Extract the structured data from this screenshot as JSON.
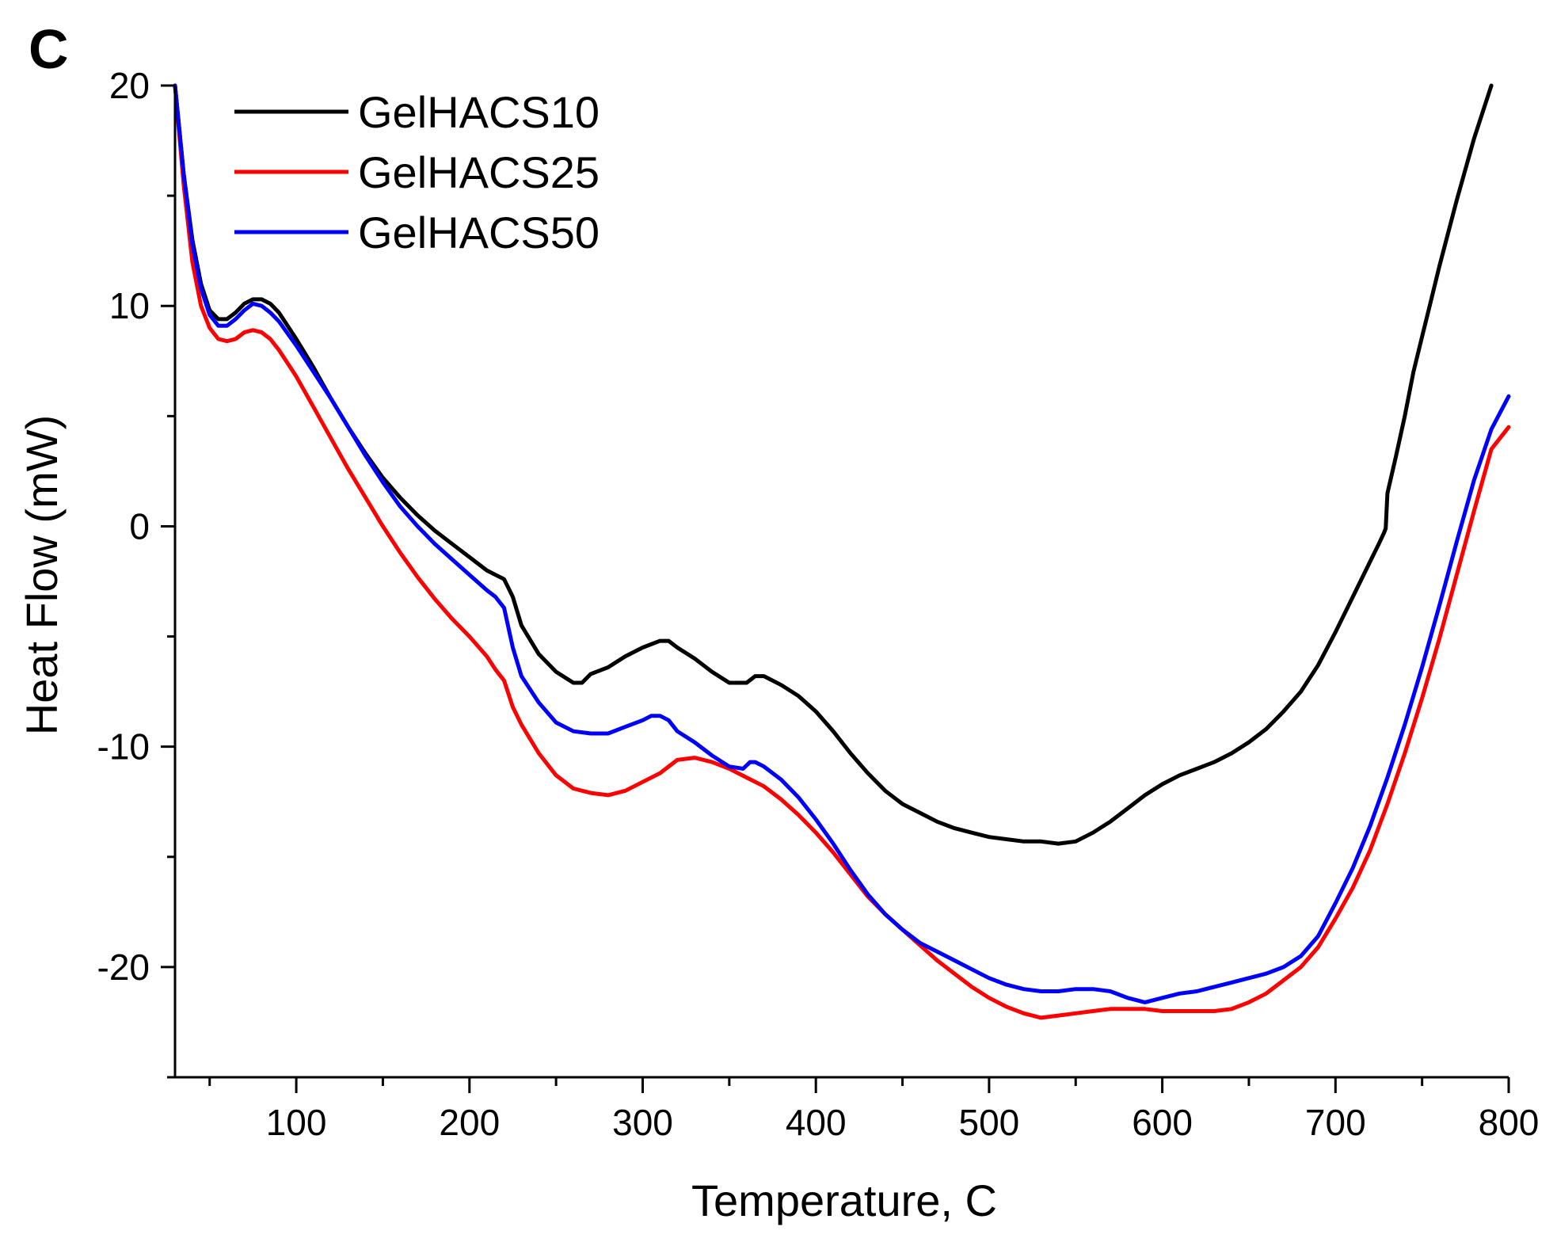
{
  "chart_data": {
    "type": "line",
    "panel_label": "C",
    "title": "",
    "xlabel": "Temperature, C",
    "ylabel": "Heat Flow (mW)",
    "xlim": [
      30,
      800
    ],
    "ylim": [
      -25,
      20
    ],
    "x_ticks": [
      100,
      200,
      300,
      400,
      500,
      600,
      700,
      800
    ],
    "x_minor_ticks": [
      50,
      150,
      250,
      350,
      450,
      550,
      650,
      750
    ],
    "y_ticks": [
      20,
      10,
      0,
      -10,
      -20
    ],
    "y_tick_labels": [
      "20",
      "10",
      "0",
      "-10",
      "-20"
    ],
    "grid": false,
    "legend_position": "top-left",
    "series": [
      {
        "name": "GelHACS10",
        "color": "#000000",
        "points": [
          [
            30,
            20
          ],
          [
            35,
            16
          ],
          [
            40,
            13
          ],
          [
            45,
            11
          ],
          [
            50,
            9.8
          ],
          [
            55,
            9.4
          ],
          [
            60,
            9.4
          ],
          [
            65,
            9.7
          ],
          [
            70,
            10.1
          ],
          [
            75,
            10.3
          ],
          [
            80,
            10.3
          ],
          [
            85,
            10.1
          ],
          [
            90,
            9.7
          ],
          [
            100,
            8.5
          ],
          [
            110,
            7.2
          ],
          [
            120,
            5.8
          ],
          [
            130,
            4.5
          ],
          [
            140,
            3.3
          ],
          [
            150,
            2.2
          ],
          [
            160,
            1.3
          ],
          [
            170,
            0.5
          ],
          [
            180,
            -0.2
          ],
          [
            190,
            -0.8
          ],
          [
            200,
            -1.4
          ],
          [
            210,
            -2.0
          ],
          [
            215,
            -2.2
          ],
          [
            220,
            -2.4
          ],
          [
            225,
            -3.2
          ],
          [
            230,
            -4.5
          ],
          [
            240,
            -5.8
          ],
          [
            250,
            -6.6
          ],
          [
            260,
            -7.1
          ],
          [
            265,
            -7.1
          ],
          [
            270,
            -6.7
          ],
          [
            280,
            -6.4
          ],
          [
            290,
            -5.9
          ],
          [
            300,
            -5.5
          ],
          [
            310,
            -5.2
          ],
          [
            315,
            -5.2
          ],
          [
            320,
            -5.5
          ],
          [
            330,
            -6.0
          ],
          [
            340,
            -6.6
          ],
          [
            350,
            -7.1
          ],
          [
            360,
            -7.1
          ],
          [
            365,
            -6.8
          ],
          [
            370,
            -6.8
          ],
          [
            380,
            -7.2
          ],
          [
            390,
            -7.7
          ],
          [
            400,
            -8.4
          ],
          [
            410,
            -9.3
          ],
          [
            420,
            -10.3
          ],
          [
            430,
            -11.2
          ],
          [
            440,
            -12.0
          ],
          [
            450,
            -12.6
          ],
          [
            460,
            -13.0
          ],
          [
            470,
            -13.4
          ],
          [
            480,
            -13.7
          ],
          [
            490,
            -13.9
          ],
          [
            500,
            -14.1
          ],
          [
            510,
            -14.2
          ],
          [
            520,
            -14.3
          ],
          [
            530,
            -14.3
          ],
          [
            540,
            -14.4
          ],
          [
            550,
            -14.3
          ],
          [
            560,
            -13.9
          ],
          [
            570,
            -13.4
          ],
          [
            580,
            -12.8
          ],
          [
            590,
            -12.2
          ],
          [
            600,
            -11.7
          ],
          [
            610,
            -11.3
          ],
          [
            620,
            -11.0
          ],
          [
            630,
            -10.7
          ],
          [
            640,
            -10.3
          ],
          [
            650,
            -9.8
          ],
          [
            660,
            -9.2
          ],
          [
            670,
            -8.4
          ],
          [
            680,
            -7.5
          ],
          [
            690,
            -6.3
          ],
          [
            700,
            -4.8
          ],
          [
            710,
            -3.2
          ],
          [
            720,
            -1.6
          ],
          [
            725,
            -0.8
          ],
          [
            728,
            -0.3
          ],
          [
            729,
            -0.1
          ],
          [
            730,
            1.5
          ],
          [
            735,
            3.2
          ],
          [
            740,
            5.0
          ],
          [
            745,
            7.0
          ],
          [
            750,
            8.6
          ],
          [
            755,
            10.2
          ],
          [
            760,
            11.8
          ],
          [
            770,
            14.8
          ],
          [
            780,
            17.6
          ],
          [
            790,
            20
          ]
        ]
      },
      {
        "name": "GelHACS25",
        "color": "#ff0000",
        "points": [
          [
            30,
            20
          ],
          [
            35,
            15.5
          ],
          [
            40,
            12
          ],
          [
            45,
            10
          ],
          [
            50,
            9.0
          ],
          [
            55,
            8.5
          ],
          [
            60,
            8.4
          ],
          [
            65,
            8.5
          ],
          [
            70,
            8.8
          ],
          [
            75,
            8.9
          ],
          [
            80,
            8.8
          ],
          [
            85,
            8.5
          ],
          [
            90,
            8.0
          ],
          [
            100,
            6.8
          ],
          [
            110,
            5.4
          ],
          [
            120,
            4.0
          ],
          [
            130,
            2.6
          ],
          [
            140,
            1.3
          ],
          [
            150,
            0.0
          ],
          [
            160,
            -1.2
          ],
          [
            170,
            -2.3
          ],
          [
            180,
            -3.3
          ],
          [
            190,
            -4.2
          ],
          [
            200,
            -5.0
          ],
          [
            210,
            -5.9
          ],
          [
            215,
            -6.5
          ],
          [
            220,
            -7.0
          ],
          [
            225,
            -8.2
          ],
          [
            230,
            -9.0
          ],
          [
            240,
            -10.3
          ],
          [
            250,
            -11.3
          ],
          [
            260,
            -11.9
          ],
          [
            270,
            -12.1
          ],
          [
            280,
            -12.2
          ],
          [
            290,
            -12.0
          ],
          [
            300,
            -11.6
          ],
          [
            310,
            -11.2
          ],
          [
            320,
            -10.6
          ],
          [
            330,
            -10.5
          ],
          [
            340,
            -10.7
          ],
          [
            350,
            -11.0
          ],
          [
            360,
            -11.4
          ],
          [
            370,
            -11.8
          ],
          [
            380,
            -12.4
          ],
          [
            390,
            -13.1
          ],
          [
            400,
            -13.9
          ],
          [
            410,
            -14.8
          ],
          [
            420,
            -15.8
          ],
          [
            430,
            -16.8
          ],
          [
            440,
            -17.6
          ],
          [
            450,
            -18.3
          ],
          [
            460,
            -19.0
          ],
          [
            470,
            -19.7
          ],
          [
            480,
            -20.3
          ],
          [
            490,
            -20.9
          ],
          [
            500,
            -21.4
          ],
          [
            510,
            -21.8
          ],
          [
            520,
            -22.1
          ],
          [
            530,
            -22.3
          ],
          [
            540,
            -22.2
          ],
          [
            550,
            -22.1
          ],
          [
            560,
            -22.0
          ],
          [
            570,
            -21.9
          ],
          [
            580,
            -21.9
          ],
          [
            590,
            -21.9
          ],
          [
            600,
            -22.0
          ],
          [
            610,
            -22.0
          ],
          [
            620,
            -22.0
          ],
          [
            630,
            -22.0
          ],
          [
            640,
            -21.9
          ],
          [
            650,
            -21.6
          ],
          [
            660,
            -21.2
          ],
          [
            670,
            -20.6
          ],
          [
            680,
            -20.0
          ],
          [
            690,
            -19.1
          ],
          [
            700,
            -17.8
          ],
          [
            710,
            -16.4
          ],
          [
            720,
            -14.7
          ],
          [
            730,
            -12.6
          ],
          [
            740,
            -10.3
          ],
          [
            750,
            -7.8
          ],
          [
            760,
            -5.1
          ],
          [
            770,
            -2.2
          ],
          [
            780,
            0.7
          ],
          [
            790,
            3.5
          ],
          [
            800,
            4.5
          ]
        ]
      },
      {
        "name": "GelHACS50",
        "color": "#0000ff",
        "points": [
          [
            30,
            20
          ],
          [
            35,
            16
          ],
          [
            40,
            12.8
          ],
          [
            45,
            10.8
          ],
          [
            50,
            9.6
          ],
          [
            55,
            9.1
          ],
          [
            60,
            9.1
          ],
          [
            65,
            9.4
          ],
          [
            70,
            9.8
          ],
          [
            75,
            10.1
          ],
          [
            80,
            10.0
          ],
          [
            85,
            9.7
          ],
          [
            90,
            9.3
          ],
          [
            100,
            8.2
          ],
          [
            110,
            7.0
          ],
          [
            120,
            5.8
          ],
          [
            130,
            4.5
          ],
          [
            140,
            3.2
          ],
          [
            150,
            2.0
          ],
          [
            160,
            0.9
          ],
          [
            170,
            0.0
          ],
          [
            180,
            -0.8
          ],
          [
            190,
            -1.5
          ],
          [
            200,
            -2.2
          ],
          [
            210,
            -2.9
          ],
          [
            215,
            -3.2
          ],
          [
            220,
            -3.7
          ],
          [
            225,
            -5.5
          ],
          [
            230,
            -6.8
          ],
          [
            240,
            -8.0
          ],
          [
            250,
            -8.9
          ],
          [
            260,
            -9.3
          ],
          [
            270,
            -9.4
          ],
          [
            280,
            -9.4
          ],
          [
            290,
            -9.1
          ],
          [
            300,
            -8.8
          ],
          [
            305,
            -8.6
          ],
          [
            310,
            -8.6
          ],
          [
            315,
            -8.8
          ],
          [
            320,
            -9.3
          ],
          [
            330,
            -9.8
          ],
          [
            340,
            -10.4
          ],
          [
            350,
            -10.9
          ],
          [
            358,
            -11.0
          ],
          [
            362,
            -10.7
          ],
          [
            365,
            -10.7
          ],
          [
            370,
            -10.9
          ],
          [
            380,
            -11.5
          ],
          [
            390,
            -12.3
          ],
          [
            400,
            -13.3
          ],
          [
            410,
            -14.4
          ],
          [
            420,
            -15.6
          ],
          [
            430,
            -16.7
          ],
          [
            440,
            -17.6
          ],
          [
            450,
            -18.3
          ],
          [
            460,
            -18.9
          ],
          [
            470,
            -19.3
          ],
          [
            480,
            -19.7
          ],
          [
            490,
            -20.1
          ],
          [
            500,
            -20.5
          ],
          [
            510,
            -20.8
          ],
          [
            520,
            -21.0
          ],
          [
            530,
            -21.1
          ],
          [
            540,
            -21.1
          ],
          [
            550,
            -21.0
          ],
          [
            560,
            -21.0
          ],
          [
            570,
            -21.1
          ],
          [
            580,
            -21.4
          ],
          [
            590,
            -21.6
          ],
          [
            600,
            -21.4
          ],
          [
            610,
            -21.2
          ],
          [
            620,
            -21.1
          ],
          [
            630,
            -20.9
          ],
          [
            640,
            -20.7
          ],
          [
            650,
            -20.5
          ],
          [
            660,
            -20.3
          ],
          [
            670,
            -20.0
          ],
          [
            680,
            -19.5
          ],
          [
            690,
            -18.6
          ],
          [
            700,
            -17.1
          ],
          [
            710,
            -15.5
          ],
          [
            720,
            -13.6
          ],
          [
            730,
            -11.4
          ],
          [
            740,
            -9.0
          ],
          [
            750,
            -6.4
          ],
          [
            760,
            -3.6
          ],
          [
            770,
            -0.7
          ],
          [
            780,
            2.1
          ],
          [
            790,
            4.4
          ],
          [
            800,
            5.9
          ]
        ]
      }
    ]
  }
}
